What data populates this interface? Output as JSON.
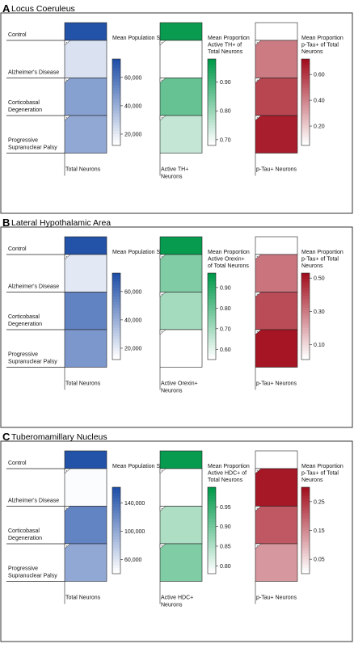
{
  "chart_data": [
    {
      "type": "heatmap",
      "letter": "A",
      "title": "Locus Coeruleus",
      "rows": [
        "Control",
        "Alzheimer's Disease",
        "Corticobasal Degeneration",
        "Progressive Supranuclear Palsy"
      ],
      "columns": [
        {
          "name": "Total Neurons",
          "legend_title": "Mean Population Size",
          "color_low": "#ffffff",
          "color_high": "#1f4fa8",
          "legend_range": [
            12000,
            73000
          ],
          "ticks": [
            "20,000",
            "40,000",
            "60,000"
          ],
          "tick_values": [
            20000,
            40000,
            60000
          ],
          "values": [
            72000,
            22000,
            45000,
            42000
          ],
          "marked": [
            false,
            true,
            true,
            true
          ]
        },
        {
          "name": "Active TH+ Neurons",
          "legend_title": "Mean Proportion Active TH+ of Total Neurons",
          "color_low": "#ffffff",
          "color_high": "#00994a",
          "legend_range": [
            0.68,
            0.98
          ],
          "ticks": [
            "0.70",
            "0.80",
            "0.90"
          ],
          "tick_values": [
            0.7,
            0.8,
            0.9
          ],
          "values": [
            0.97,
            0.68,
            0.86,
            0.75
          ],
          "marked": [
            false,
            true,
            true,
            true
          ]
        },
        {
          "name": "p-Tau+ Neurons",
          "legend_title": "Mean Proportion p-Tau+ of Total Neurons",
          "color_low": "#ffffff",
          "color_high": "#a3101f",
          "legend_range": [
            0.05,
            0.72
          ],
          "ticks": [
            "0.20",
            "0.40",
            "0.60"
          ],
          "tick_values": [
            0.2,
            0.4,
            0.6
          ],
          "values": [
            0.05,
            0.42,
            0.57,
            0.68
          ],
          "marked": [
            false,
            true,
            true,
            true
          ]
        }
      ]
    },
    {
      "type": "heatmap",
      "letter": "B",
      "title": "Lateral Hypothalamic Area",
      "rows": [
        "Control",
        "Alzheimer's Disease",
        "Corticobasal Degeneration",
        "Progressive Supranuclear Palsy"
      ],
      "columns": [
        {
          "name": "Total Neurons",
          "legend_title": "Mean Population Size",
          "color_low": "#ffffff",
          "color_high": "#1f4fa8",
          "legend_range": [
            12000,
            73000
          ],
          "ticks": [
            "20,000",
            "40,000",
            "60,000"
          ],
          "tick_values": [
            20000,
            40000,
            60000
          ],
          "values": [
            72000,
            20000,
            55000,
            48000
          ],
          "marked": [
            false,
            true,
            false,
            false
          ]
        },
        {
          "name": "Active Orexin+ Neurons",
          "legend_title": "Mean Proportion Active Orexin+ of Total Neurons",
          "color_low": "#ffffff",
          "color_high": "#00994a",
          "legend_range": [
            0.55,
            0.97
          ],
          "ticks": [
            "0.60",
            "0.70",
            "0.80",
            "0.90"
          ],
          "tick_values": [
            0.6,
            0.7,
            0.8,
            0.9
          ],
          "values": [
            0.96,
            0.76,
            0.7,
            0.55
          ],
          "marked": [
            false,
            true,
            true,
            true
          ]
        },
        {
          "name": "p-Tau+ Neurons",
          "legend_title": "Mean Proportion p-Tau+ of Total Neurons",
          "color_low": "#ffffff",
          "color_high": "#a3101f",
          "legend_range": [
            0.01,
            0.53
          ],
          "ticks": [
            "0.10",
            "0.30",
            "0.50"
          ],
          "tick_values": [
            0.1,
            0.3,
            0.5
          ],
          "values": [
            0.01,
            0.31,
            0.4,
            0.52
          ],
          "marked": [
            false,
            true,
            true,
            true
          ]
        }
      ]
    },
    {
      "type": "heatmap",
      "letter": "C",
      "title": "Tuberomamillary Nucleus",
      "rows": [
        "Control",
        "Alzheimer's Disease",
        "Corticobasal Degeneration",
        "Progressive Supranuclear Palsy"
      ],
      "columns": [
        {
          "name": "Total Neurons",
          "legend_title": "Mean Population Size",
          "color_low": "#ffffff",
          "color_high": "#1f4fa8",
          "legend_range": [
            40000,
            162000
          ],
          "ticks": [
            "60,000",
            "100,000",
            "140,000"
          ],
          "tick_values": [
            60000,
            100000,
            140000
          ],
          "values": [
            160000,
            42000,
            125000,
            100000
          ],
          "marked": [
            false,
            true,
            true,
            true
          ]
        },
        {
          "name": "Active HDC+ Neurons",
          "legend_title": "Mean Proportion Active HDC+ of Total Neurons",
          "color_low": "#ffffff",
          "color_high": "#00994a",
          "legend_range": [
            0.78,
            1.0
          ],
          "ticks": [
            "0.80",
            "0.85",
            "0.90",
            "0.95"
          ],
          "tick_values": [
            0.8,
            0.85,
            0.9,
            0.95
          ],
          "values": [
            0.995,
            0.78,
            0.85,
            0.89
          ],
          "marked": [
            false,
            true,
            true,
            true
          ]
        },
        {
          "name": "p-Tau+ Neurons",
          "legend_title": "Mean Proportion p-Tau+ of Total Neurons",
          "color_low": "#ffffff",
          "color_high": "#a3101f",
          "legend_range": [
            0.0,
            0.3
          ],
          "ticks": [
            "0.05",
            "0.15",
            "0.25"
          ],
          "tick_values": [
            0.05,
            0.15,
            0.25
          ],
          "values": [
            0.0,
            0.29,
            0.21,
            0.13
          ],
          "marked": [
            false,
            true,
            true,
            true
          ]
        }
      ]
    }
  ]
}
